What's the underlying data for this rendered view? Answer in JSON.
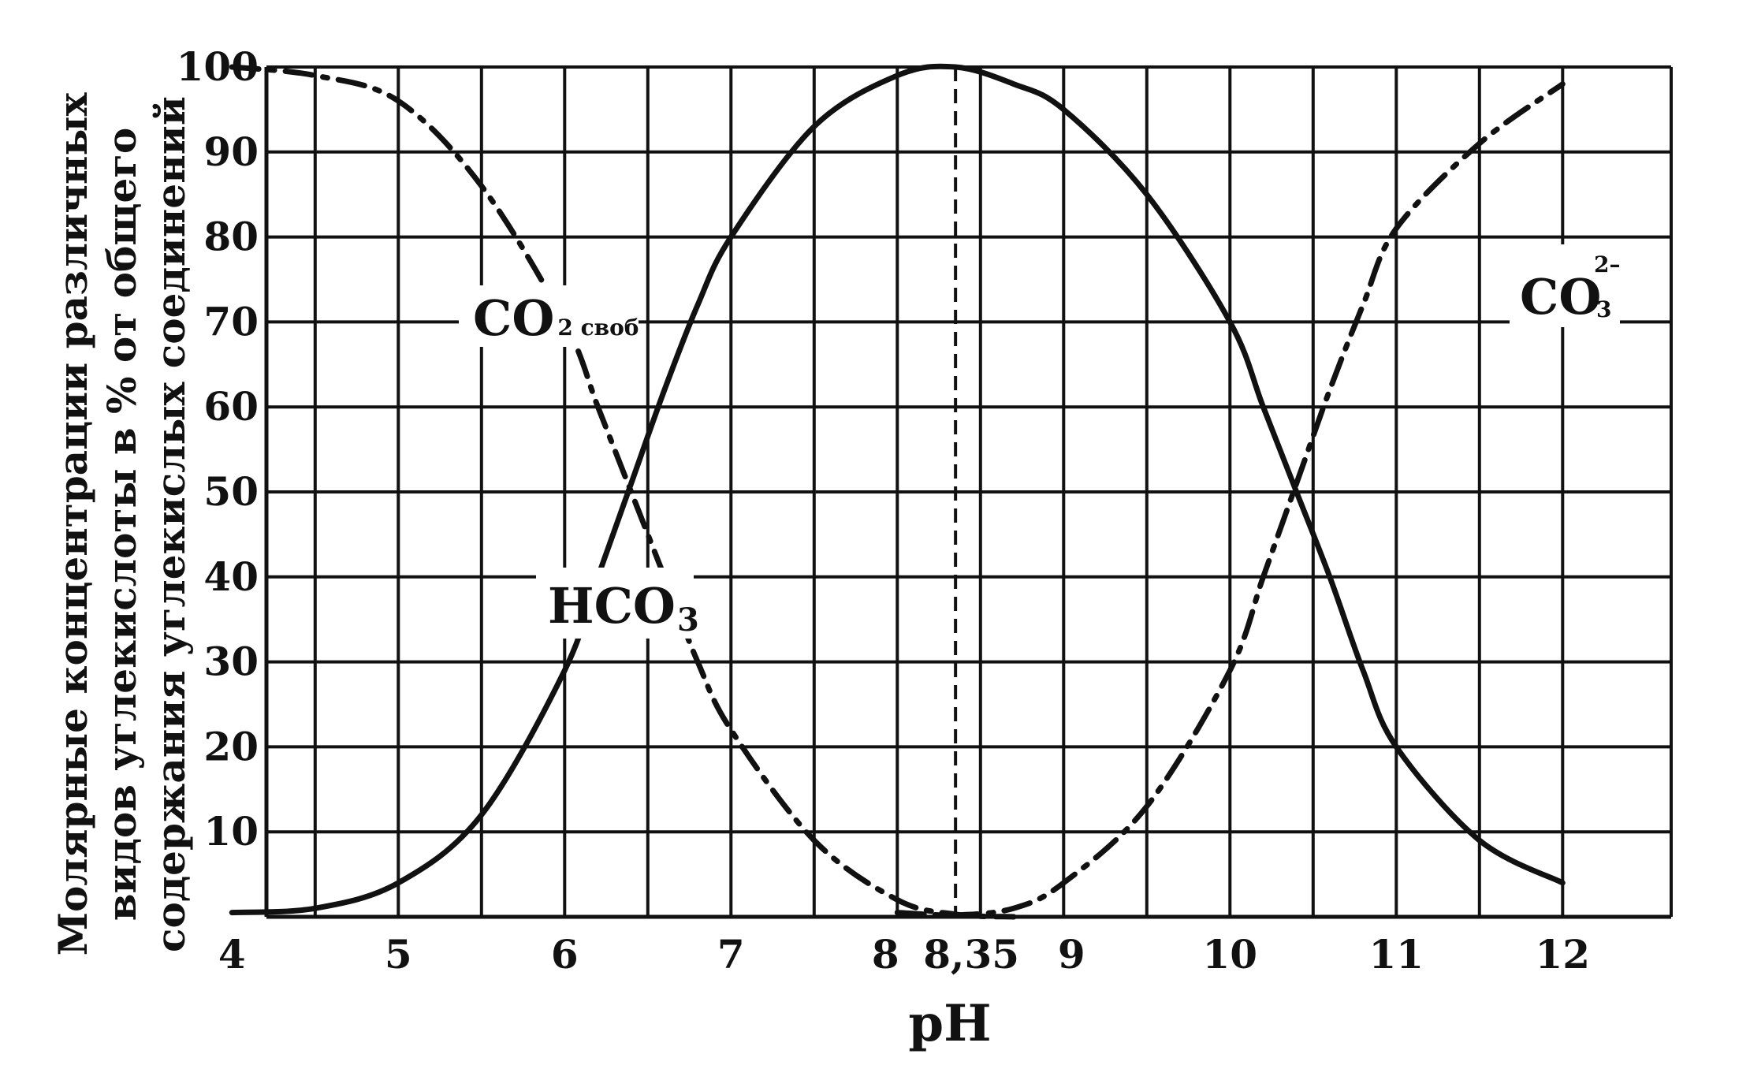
{
  "chart_data": {
    "type": "line",
    "xlabel": "pH",
    "ylabel_lines": [
      "Молярные концентрации различных",
      "видов углекислоты в % от общего",
      "содержания углекислых соединений"
    ],
    "xlim": [
      4,
      12
    ],
    "ylim": [
      0,
      100
    ],
    "x_ticks": [
      "4",
      "5",
      "6",
      "7",
      "8",
      "8,35",
      "9",
      "10",
      "11",
      "12"
    ],
    "x_tick_values": [
      4,
      5,
      6,
      7,
      8,
      8.35,
      9,
      10,
      11,
      12
    ],
    "y_ticks": [
      "10",
      "20",
      "30",
      "40",
      "50",
      "60",
      "70",
      "80",
      "90",
      "100"
    ],
    "y_tick_values": [
      10,
      20,
      30,
      40,
      50,
      60,
      70,
      80,
      90,
      100
    ],
    "grid": true,
    "reference_line": {
      "x": 8.35,
      "style": "dashed"
    },
    "series": [
      {
        "label_main": "CO",
        "label_sub": "2 своб",
        "style": "dash-dot",
        "x": [
          4,
          4.5,
          5,
          5.5,
          6,
          6.2,
          6.4,
          6.6,
          6.8,
          7,
          7.5,
          8,
          8.35,
          8.7
        ],
        "values": [
          100,
          99,
          96,
          86,
          70,
          60,
          50,
          40,
          30,
          22,
          9,
          2,
          0.3,
          0
        ]
      },
      {
        "label_main": "HCO",
        "label_sub": "3",
        "style": "solid",
        "x": [
          4,
          4.5,
          5,
          5.5,
          6,
          6.2,
          6.4,
          6.6,
          6.8,
          7,
          7.5,
          8,
          8.35,
          8.7,
          9,
          9.5,
          10,
          10.2,
          10.4,
          10.6,
          10.8,
          11,
          11.5,
          12
        ],
        "values": [
          0.5,
          1,
          4,
          12,
          29,
          40,
          51,
          62,
          72,
          80,
          93,
          99,
          100,
          98,
          95,
          85,
          70,
          60,
          50,
          40,
          29,
          20,
          9,
          4
        ]
      },
      {
        "label_main": "CO",
        "label_sub": "3",
        "label_sup": "2–",
        "style": "dash-dot",
        "x": [
          8,
          8.35,
          8.7,
          9,
          9.5,
          10,
          10.2,
          10.4,
          10.6,
          10.8,
          11,
          11.5,
          12
        ],
        "values": [
          0.5,
          0.2,
          1,
          4,
          13,
          29,
          40,
          51,
          62,
          72,
          81,
          91,
          98
        ]
      }
    ]
  }
}
